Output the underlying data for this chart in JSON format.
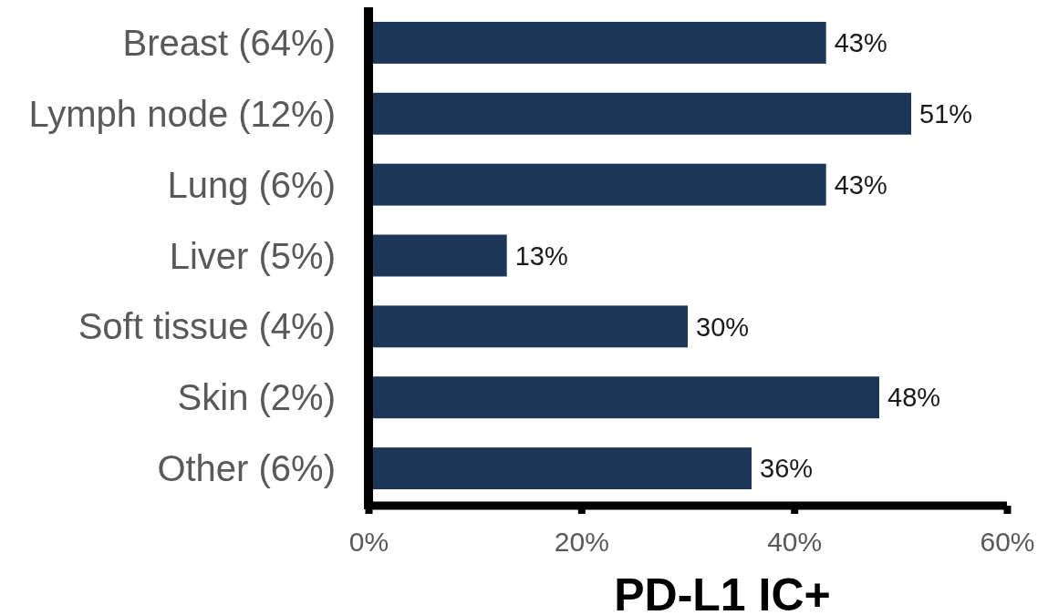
{
  "chart_data": {
    "type": "bar",
    "orientation": "horizontal",
    "xlabel": "PD-L1 IC+",
    "categories": [
      "Breast (64%)",
      "Lymph node (12%)",
      "Lung (6%)",
      "Liver (5%)",
      "Soft tissue (4%)",
      "Skin (2%)",
      "Other (6%)"
    ],
    "values": [
      43,
      51,
      43,
      13,
      30,
      48,
      36
    ],
    "value_labels": [
      "43%",
      "51%",
      "43%",
      "13%",
      "30%",
      "48%",
      "36%"
    ],
    "color": "#1d3557",
    "xlim": [
      0,
      60
    ],
    "xticks": [
      {
        "value": 0,
        "label": "0%"
      },
      {
        "value": 20,
        "label": "20%"
      },
      {
        "value": 40,
        "label": "40%"
      },
      {
        "value": 60,
        "label": "60%"
      }
    ]
  }
}
